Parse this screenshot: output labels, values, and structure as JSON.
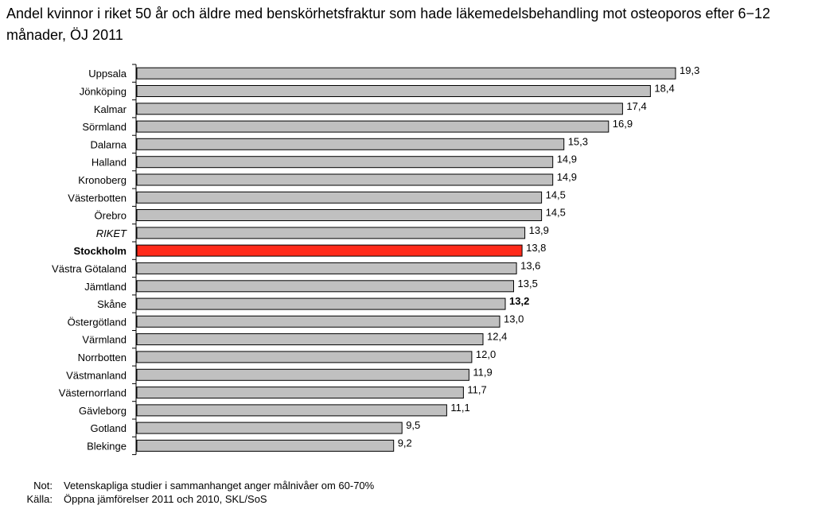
{
  "chart_data": {
    "type": "bar",
    "orientation": "horizontal",
    "title": "Andel kvinnor i riket 50 år och äldre med benskörhetsfraktur som hade läkemedelsbehandling mot osteoporos efter 6−12 månader, ÖJ 2011",
    "categories": [
      "Uppsala",
      "Jönköping",
      "Kalmar",
      "Sörmland",
      "Dalarna",
      "Halland",
      "Kronoberg",
      "Västerbotten",
      "Örebro",
      "RIKET",
      "Stockholm",
      "Västra Götaland",
      "Jämtland",
      "Skåne",
      "Östergötland",
      "Värmland",
      "Norrbotten",
      "Västmanland",
      "Västernorrland",
      "Gävleborg",
      "Gotland",
      "Blekinge"
    ],
    "values": [
      19.3,
      18.4,
      17.4,
      16.9,
      15.3,
      14.9,
      14.9,
      14.5,
      14.5,
      13.9,
      13.8,
      13.6,
      13.5,
      13.2,
      13.0,
      12.4,
      12.0,
      11.9,
      11.7,
      11.1,
      9.5,
      9.2
    ],
    "value_labels": [
      "19,3",
      "18,4",
      "17,4",
      "16,9",
      "15,3",
      "14,9",
      "14,9",
      "14,5",
      "14,5",
      "13,9",
      "13,8",
      "13,6",
      "13,5",
      "13,2",
      "13,0",
      "12,4",
      "12,0",
      "11,9",
      "11,7",
      "11,1",
      "9,5",
      "9,2"
    ],
    "highlight": {
      "category": "Stockholm",
      "color": "#ff2a1a"
    },
    "bold_value_category": "Skåne",
    "italic_category": "RIKET",
    "bar_color": "#c0c0c0",
    "bar_border_color": "#000000",
    "xlim": [
      0,
      19.3
    ],
    "grid": false,
    "legend": "none"
  },
  "notes": {
    "not_label": "Not:",
    "not_text": "Vetenskapliga studier i sammanhanget anger målnivåer om 60-70%",
    "kalla_label": "Källa:",
    "kalla_text": "Öppna jämförelser 2011 och 2010, SKL/SoS"
  }
}
